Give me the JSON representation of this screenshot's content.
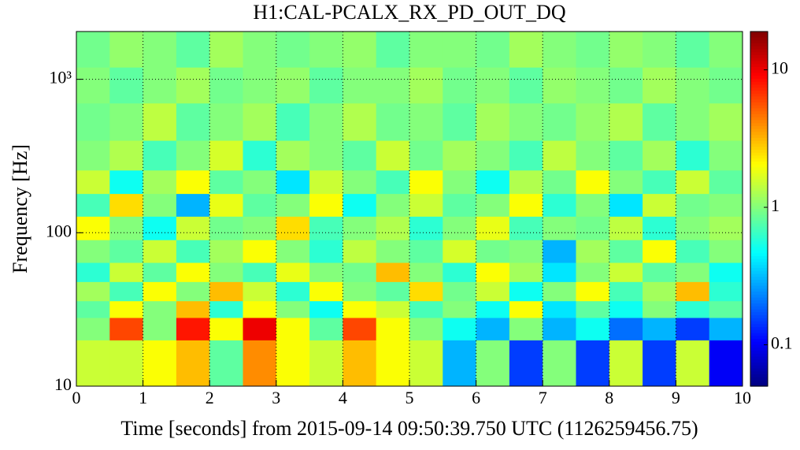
{
  "chart_data": {
    "type": "heatmap",
    "title": "H1:CAL-PCALX_RX_PD_OUT_DQ",
    "xlabel": "Time [seconds] from 2015-09-14 09:50:39.750 UTC (1126259456.75)",
    "ylabel": "Frequency [Hz]",
    "x": [
      0,
      0.5,
      1,
      1.5,
      2,
      2.5,
      3,
      3.5,
      4,
      4.5,
      5,
      5.5,
      6,
      6.5,
      7,
      7.5,
      8,
      8.5,
      9,
      9.5,
      10
    ],
    "y": [
      10,
      20,
      28,
      36,
      48,
      64,
      90,
      128,
      180,
      256,
      400,
      700,
      1200,
      2048
    ],
    "z": [
      [
        1.5,
        1.5,
        2,
        3,
        0.8,
        4,
        2,
        1.5,
        3,
        2,
        1.5,
        0.3,
        1,
        0.15,
        1,
        0.15,
        1.5,
        0.15,
        1.5,
        0.1
      ],
      [
        1,
        6,
        1,
        8,
        2,
        10,
        2,
        0.8,
        6,
        2,
        1,
        0.5,
        0.3,
        1,
        0.3,
        0.5,
        0.2,
        0.3,
        0.15,
        0.3
      ],
      [
        0.8,
        2,
        1,
        3,
        0.6,
        2,
        1,
        0.5,
        2,
        1.5,
        0.7,
        1,
        0.5,
        2,
        0.4,
        0.8,
        0.5,
        1,
        0.6,
        0.8
      ],
      [
        1.2,
        0.7,
        2,
        1,
        3,
        1.5,
        0.6,
        2,
        1,
        0.8,
        2.5,
        0.9,
        1.5,
        0.5,
        1,
        2,
        0.7,
        1.2,
        3,
        0.6
      ],
      [
        0.6,
        1.5,
        0.8,
        2,
        1,
        0.7,
        1.8,
        1,
        0.9,
        3,
        1,
        0.6,
        2,
        1.2,
        0.4,
        1,
        1.5,
        0.8,
        1,
        0.5
      ],
      [
        1,
        0.8,
        1.5,
        0.7,
        1.2,
        2,
        1,
        0.6,
        1.4,
        1,
        0.8,
        1.6,
        0.9,
        1,
        0.3,
        1.2,
        0.8,
        2,
        0.7,
        1
      ],
      [
        2,
        1,
        0.5,
        1.5,
        0.9,
        1,
        2.5,
        0.7,
        1,
        1.3,
        0.6,
        1,
        1.8,
        0.7,
        1,
        0.9,
        1.4,
        0.6,
        1,
        1.2
      ],
      [
        0.7,
        2.5,
        1,
        0.3,
        1.8,
        0.8,
        1,
        2,
        0.5,
        1,
        1.5,
        0.8,
        1,
        2,
        0.6,
        1,
        0.4,
        1.5,
        0.9,
        1
      ],
      [
        1.5,
        0.5,
        1.2,
        2,
        0.8,
        1,
        0.4,
        1.5,
        1,
        0.7,
        2,
        1,
        0.5,
        1.3,
        0.9,
        2,
        1,
        0.7,
        1.5,
        0.8
      ],
      [
        1,
        1.3,
        0.7,
        1,
        1.6,
        0.6,
        1.2,
        1,
        0.8,
        1.5,
        0.9,
        1.2,
        1,
        0.7,
        1.4,
        1,
        0.8,
        1.2,
        0.6,
        1
      ],
      [
        0.9,
        1,
        1.4,
        0.8,
        1,
        1.2,
        0.7,
        1,
        1.3,
        0.9,
        1,
        0.8,
        1.2,
        1,
        0.9,
        1.1,
        1.3,
        0.8,
        1,
        1.2
      ],
      [
        1,
        0.8,
        1,
        1.2,
        0.9,
        1,
        1.1,
        0.8,
        1,
        1,
        1.2,
        0.9,
        1,
        0.8,
        1.1,
        1,
        0.9,
        1.2,
        1,
        0.9
      ],
      [
        0.9,
        1.1,
        1,
        0.8,
        1.2,
        1,
        0.9,
        1,
        1.1,
        0.8,
        1,
        1,
        0.9,
        1.2,
        1,
        0.9,
        1.1,
        1,
        0.8,
        1
      ]
    ],
    "xlim": [
      0,
      10
    ],
    "xticks": [
      0,
      1,
      2,
      3,
      4,
      5,
      6,
      7,
      8,
      9,
      10
    ],
    "ylim": [
      10,
      2048
    ],
    "yticks": [
      10,
      100,
      {
        "value": 1000,
        "label": "10³"
      }
    ],
    "yscale": "log",
    "grid": true,
    "colormap": "jet",
    "clim": [
      0.05,
      19
    ],
    "cticks": [
      0.1,
      1,
      10
    ],
    "cscale": "log"
  }
}
